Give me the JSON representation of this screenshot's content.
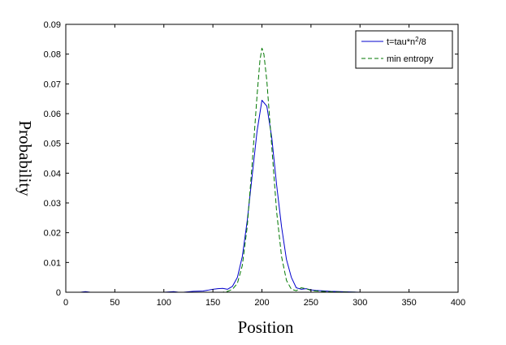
{
  "chart_data": {
    "type": "line",
    "xlabel": "Position",
    "ylabel": "Probability",
    "xlim": [
      0,
      400
    ],
    "ylim": [
      0,
      0.09
    ],
    "xticks": [
      0,
      50,
      100,
      150,
      200,
      250,
      300,
      350,
      400
    ],
    "yticks": [
      0,
      0.01,
      0.02,
      0.03,
      0.04,
      0.05,
      0.06,
      0.07,
      0.08,
      0.09
    ],
    "grid": false,
    "legend_position": "top-right",
    "series": [
      {
        "name": "t=tau*n^2/8",
        "legend_main": "t=tau*n",
        "legend_sup": "2",
        "legend_tail": "/8",
        "color": "#0000cc",
        "style": "solid",
        "x": [
          0,
          15,
          20,
          25,
          50,
          80,
          100,
          110,
          115,
          120,
          130,
          140,
          145,
          150,
          155,
          160,
          165,
          170,
          175,
          180,
          185,
          190,
          195,
          200,
          205,
          210,
          215,
          220,
          225,
          230,
          235,
          240,
          245,
          250,
          255,
          260,
          270,
          280,
          290,
          300,
          350,
          400
        ],
        "values": [
          0,
          0,
          0.0002,
          0,
          0,
          0,
          0,
          0.0002,
          0,
          0,
          0.0003,
          0.0004,
          0.0007,
          0.001,
          0.0012,
          0.0013,
          0.001,
          0.002,
          0.005,
          0.012,
          0.024,
          0.039,
          0.054,
          0.0645,
          0.0625,
          0.052,
          0.036,
          0.022,
          0.011,
          0.005,
          0.0015,
          0.001,
          0.0012,
          0.0008,
          0.0006,
          0.0005,
          0.0003,
          0.0002,
          0.0001,
          0,
          0,
          0
        ]
      },
      {
        "name": "min entropy",
        "legend_main": "min entropy",
        "color": "#007700",
        "style": "dashed",
        "x": [
          0,
          100,
          150,
          160,
          165,
          170,
          175,
          180,
          185,
          190,
          195,
          198,
          200,
          202,
          205,
          210,
          215,
          220,
          225,
          230,
          235,
          240,
          245,
          250,
          260,
          270,
          280,
          300,
          400
        ],
        "values": [
          0,
          0,
          0,
          0,
          0.0003,
          0.001,
          0.003,
          0.009,
          0.022,
          0.043,
          0.066,
          0.078,
          0.082,
          0.08,
          0.071,
          0.049,
          0.027,
          0.012,
          0.004,
          0.001,
          0.0005,
          0.0015,
          0.0012,
          0.0006,
          0.0003,
          0.0002,
          0.0001,
          0,
          0
        ]
      }
    ]
  }
}
